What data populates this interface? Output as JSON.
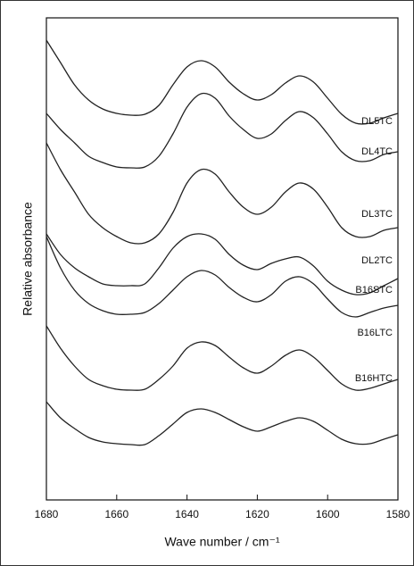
{
  "chart_data": {
    "type": "line",
    "xlabel": "Wave number / cm⁻¹",
    "ylabel": "Relative absorbance",
    "x": [
      1680,
      1676,
      1672,
      1668,
      1664,
      1660,
      1656,
      1652,
      1648,
      1644,
      1640,
      1636,
      1632,
      1628,
      1624,
      1620,
      1616,
      1612,
      1608,
      1604,
      1600,
      1596,
      1592,
      1588,
      1584,
      1580
    ],
    "xlim": [
      1680,
      1580
    ],
    "xticks": [
      1680,
      1660,
      1640,
      1620,
      1600,
      1580
    ],
    "ylim": [
      0,
      540
    ],
    "series": [
      {
        "name": "DL5TC",
        "color": "#222222",
        "values": [
          515,
          490,
          465,
          448,
          438,
          433,
          431,
          432,
          442,
          465,
          485,
          492,
          485,
          468,
          455,
          448,
          454,
          467,
          475,
          468,
          450,
          432,
          422,
          422,
          428,
          433
        ]
      },
      {
        "name": "DL4TC",
        "color": "#222222",
        "values": [
          433,
          415,
          400,
          385,
          378,
          373,
          372,
          373,
          385,
          410,
          440,
          455,
          450,
          430,
          415,
          405,
          410,
          425,
          435,
          428,
          410,
          390,
          380,
          380,
          387,
          390
        ]
      },
      {
        "name": "DL3TC",
        "color": "#222222",
        "values": [
          400,
          370,
          345,
          320,
          305,
          295,
          288,
          288,
          298,
          322,
          355,
          370,
          365,
          345,
          328,
          320,
          328,
          345,
          355,
          348,
          328,
          305,
          295,
          295,
          302,
          305
        ]
      },
      {
        "name": "DL2TC",
        "color": "#222222",
        "values": [
          298,
          275,
          260,
          250,
          242,
          240,
          240,
          242,
          260,
          282,
          295,
          298,
          292,
          275,
          263,
          258,
          265,
          270,
          272,
          262,
          245,
          235,
          230,
          232,
          240,
          248
        ]
      },
      {
        "name": "B16STC",
        "color": "#222222",
        "values": [
          295,
          260,
          235,
          220,
          212,
          208,
          208,
          210,
          220,
          235,
          250,
          257,
          252,
          238,
          227,
          222,
          230,
          245,
          250,
          242,
          225,
          210,
          205,
          210,
          215,
          218
        ]
      },
      {
        "name": "B16LTC",
        "color": "#222222",
        "values": [
          195,
          170,
          150,
          135,
          128,
          124,
          123,
          124,
          135,
          150,
          170,
          177,
          173,
          160,
          148,
          142,
          150,
          162,
          168,
          160,
          145,
          130,
          123,
          125,
          130,
          135
        ]
      },
      {
        "name": "B16HTC",
        "color": "#222222",
        "values": [
          110,
          92,
          80,
          70,
          65,
          63,
          62,
          62,
          72,
          85,
          98,
          102,
          98,
          90,
          82,
          77,
          82,
          88,
          92,
          88,
          78,
          68,
          63,
          63,
          68,
          73
        ]
      }
    ]
  }
}
